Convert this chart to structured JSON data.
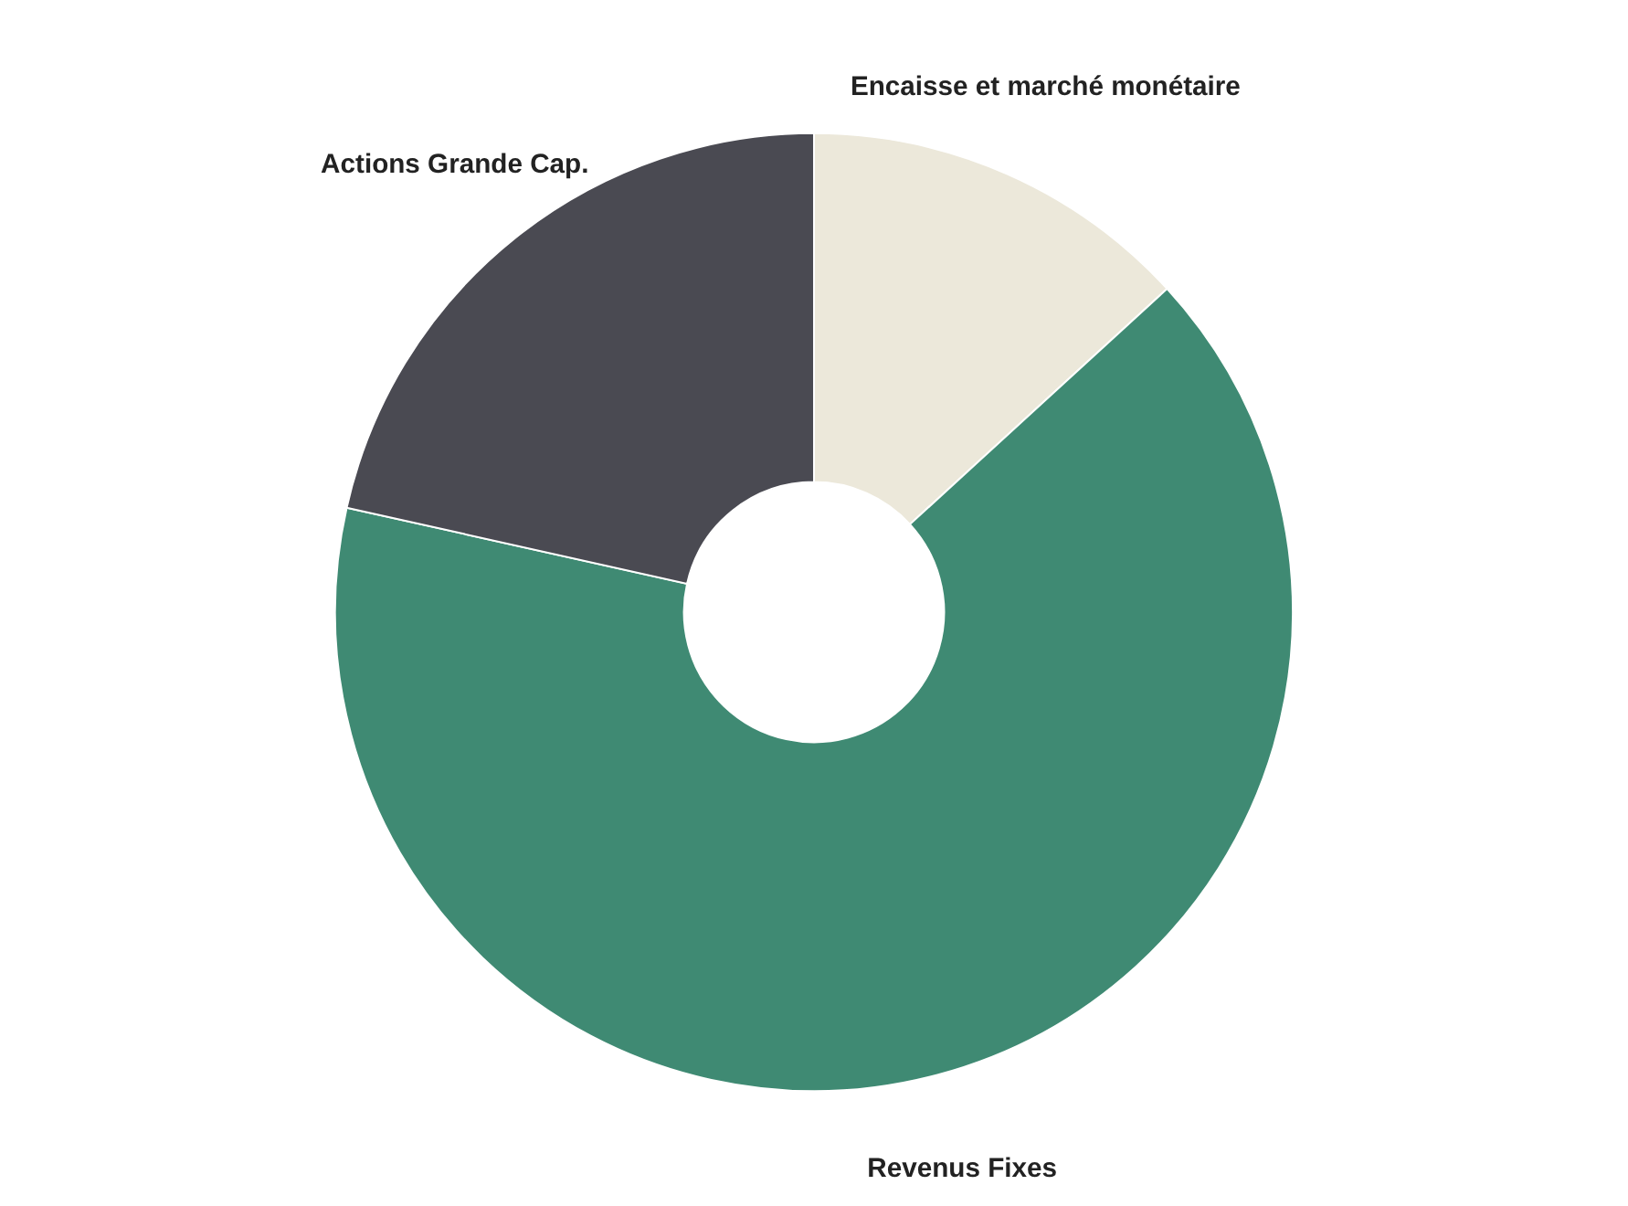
{
  "chart_data": {
    "type": "donut",
    "categories": [
      "Encaisse et marché monétaire",
      "Revenus Fixes",
      "Actions Grande Cap."
    ],
    "values": [
      13.2,
      65.3,
      21.5
    ],
    "colors": [
      "#ece8da",
      "#3f8a73",
      "#4a4a52"
    ]
  }
}
